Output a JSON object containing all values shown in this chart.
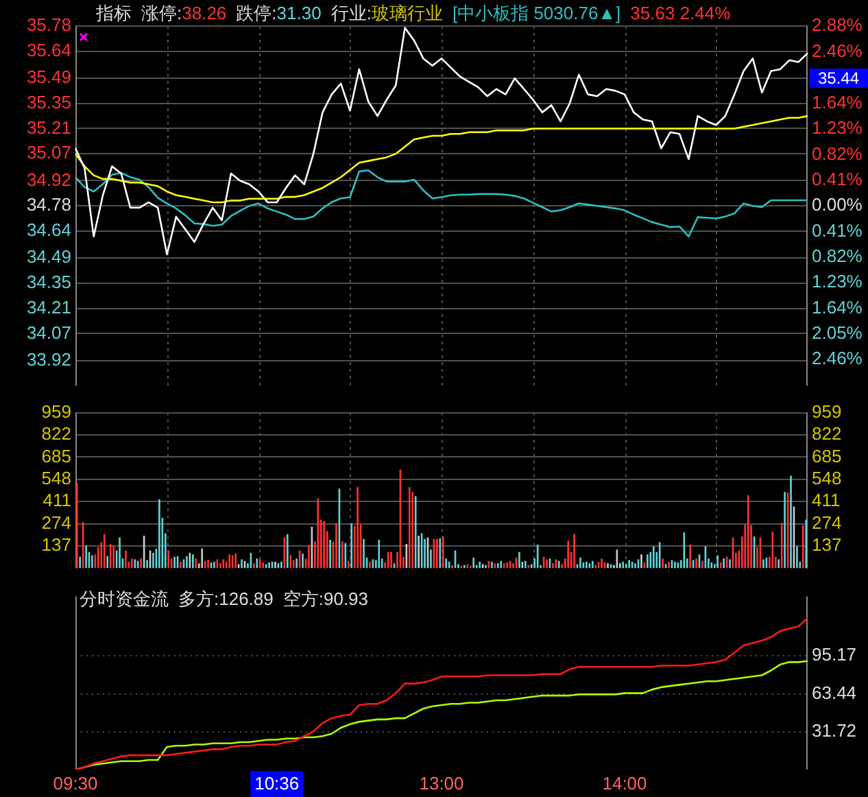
{
  "chart_data": [
    {
      "type": "line",
      "annotations": [
        "指标",
        "涨停:38.26",
        "跌停:31.30",
        "行业:玻璃行业",
        "[中小板指 5030.76▲]",
        "35.63 2.44%",
        "35.44"
      ],
      "categories": [
        null,
        null,
        null,
        null,
        null,
        null,
        null,
        null,
        null,
        null,
        null,
        null,
        null,
        null,
        null,
        null,
        null,
        null,
        null,
        null,
        null,
        null,
        null,
        null,
        null,
        null,
        null,
        null,
        null,
        null,
        null,
        null,
        null,
        null,
        null,
        null,
        null,
        null,
        null,
        null,
        null,
        null,
        null,
        null,
        null,
        null,
        null,
        null,
        null,
        null,
        null,
        null,
        null,
        null,
        null,
        null,
        null,
        null,
        null,
        null,
        null,
        null,
        null,
        null,
        null,
        null,
        null,
        null,
        null,
        null,
        null,
        null,
        null,
        null,
        null,
        null,
        null,
        null,
        null,
        null,
        null
      ],
      "ylim": [
        33.78,
        35.78
      ],
      "yticks": [
        35.78,
        35.64,
        35.49,
        35.35,
        35.21,
        35.07,
        34.92,
        34.78,
        34.64,
        34.49,
        34.35,
        34.21,
        34.07,
        33.92
      ],
      "y2lim": [
        -2.88,
        2.88
      ],
      "y2ticks": [
        {
          "value": 2.88,
          "label": "2.88%"
        },
        {
          "value": 2.46,
          "label": "2.46%"
        },
        {
          "value": 2.05,
          "label": null
        },
        {
          "value": 1.64,
          "label": "1.64%"
        },
        {
          "value": 1.23,
          "label": "1.23%"
        },
        {
          "value": 0.82,
          "label": "0.82%"
        },
        {
          "value": 0.41,
          "label": "0.41%"
        },
        {
          "value": 0,
          "label": "0.00%"
        },
        {
          "value": -0.41,
          "label": "0.41%"
        },
        {
          "value": -0.82,
          "label": "0.82%"
        },
        {
          "value": -1.23,
          "label": "1.23%"
        },
        {
          "value": -1.64,
          "label": "1.64%"
        },
        {
          "value": -2.05,
          "label": "2.05%"
        },
        {
          "value": -2.46,
          "label": "2.46%"
        }
      ],
      "grid": true,
      "tick_labels": "y",
      "series": [
        {
          "color": "#ffffff",
          "values": [
            35.1,
            34.99,
            34.61,
            34.84,
            35.0,
            34.96,
            34.77,
            34.77,
            34.8,
            34.77,
            34.51,
            34.72,
            34.65,
            34.58,
            34.68,
            34.77,
            34.7,
            34.96,
            34.92,
            34.9,
            34.86,
            34.8,
            34.8,
            34.88,
            34.95,
            34.9,
            35.07,
            35.3,
            35.4,
            35.46,
            35.31,
            35.54,
            35.36,
            35.28,
            35.37,
            35.45,
            35.77,
            35.7,
            35.6,
            35.56,
            35.6,
            35.55,
            35.5,
            35.47,
            35.44,
            35.39,
            35.43,
            35.4,
            35.49,
            35.43,
            35.37,
            35.3,
            35.34,
            35.25,
            35.35,
            35.51,
            35.4,
            35.39,
            35.43,
            35.42,
            35.4,
            35.3,
            35.26,
            35.25,
            35.1,
            35.19,
            35.18,
            35.04,
            35.28,
            35.25,
            35.23,
            35.28,
            35.4,
            35.53,
            35.6,
            35.41,
            35.53,
            35.54,
            35.59,
            35.58,
            35.63
          ]
        },
        {
          "color": "#ffff00",
          "values": [
            35.07,
            35.0,
            34.95,
            34.93,
            34.93,
            34.92,
            34.91,
            34.91,
            34.9,
            34.89,
            34.86,
            34.84,
            34.83,
            34.82,
            34.81,
            34.8,
            34.8,
            34.81,
            34.81,
            34.82,
            34.82,
            34.82,
            34.82,
            34.83,
            34.83,
            34.84,
            34.86,
            34.88,
            34.91,
            34.94,
            34.98,
            35.02,
            35.03,
            35.04,
            35.05,
            35.07,
            35.11,
            35.15,
            35.16,
            35.17,
            35.17,
            35.18,
            35.18,
            35.19,
            35.19,
            35.19,
            35.2,
            35.2,
            35.2,
            35.2,
            35.21,
            35.21,
            35.21,
            35.21,
            35.21,
            35.21,
            35.21,
            35.21,
            35.21,
            35.21,
            35.21,
            35.21,
            35.21,
            35.21,
            35.21,
            35.21,
            35.21,
            35.21,
            35.21,
            35.21,
            35.21,
            35.21,
            35.21,
            35.22,
            35.23,
            35.24,
            35.25,
            35.26,
            35.27,
            35.27,
            35.28
          ]
        },
        {
          "color": "#2fbfbf",
          "axis": "y2",
          "values": [
            0.46,
            0.3,
            0.23,
            0.35,
            0.5,
            0.53,
            0.46,
            0.42,
            0.3,
            0.13,
            0.04,
            -0.04,
            -0.15,
            -0.28,
            -0.29,
            -0.32,
            -0.3,
            -0.16,
            -0.08,
            0.0,
            0.04,
            -0.04,
            -0.09,
            -0.14,
            -0.21,
            -0.21,
            -0.17,
            -0.04,
            0.06,
            0.12,
            0.14,
            0.55,
            0.57,
            0.46,
            0.39,
            0.39,
            0.39,
            0.42,
            0.25,
            0.12,
            0.14,
            0.17,
            0.18,
            0.18,
            0.19,
            0.19,
            0.19,
            0.18,
            0.16,
            0.12,
            0.05,
            -0.02,
            -0.09,
            -0.07,
            -0.02,
            0.04,
            0.02,
            0.0,
            -0.02,
            -0.04,
            -0.07,
            -0.14,
            -0.2,
            -0.26,
            -0.3,
            -0.34,
            -0.33,
            -0.49,
            -0.18,
            -0.19,
            -0.2,
            -0.17,
            -0.12,
            0.04,
            0.0,
            -0.02,
            0.09,
            0.09,
            0.09,
            0.09,
            0.09
          ]
        }
      ]
    },
    {
      "type": "bar",
      "grid": true,
      "tick_labels": "y",
      "categories": [
        null,
        null,
        null,
        null,
        null,
        null,
        null,
        null,
        null,
        null,
        null,
        null,
        null,
        null,
        null,
        null,
        null,
        null,
        null,
        null,
        null,
        null,
        null,
        null,
        null,
        null,
        null,
        null,
        null,
        null,
        null,
        null,
        null,
        null,
        null,
        null,
        null,
        null,
        null,
        null,
        null,
        null,
        null,
        null,
        null,
        null,
        null,
        null,
        null,
        null,
        null,
        null,
        null,
        null,
        null,
        null,
        null,
        null,
        null,
        null,
        null,
        null,
        null,
        null,
        null,
        null,
        null,
        null,
        null,
        null,
        null,
        null,
        null,
        null,
        null,
        null,
        null,
        null,
        null,
        null,
        null,
        null,
        null,
        null,
        null,
        null,
        null,
        null,
        null,
        null,
        null,
        null,
        null,
        null,
        null,
        null,
        null,
        null,
        null,
        null,
        null,
        null,
        null,
        null,
        null,
        null,
        null,
        null,
        null,
        null,
        null,
        null,
        null,
        null,
        null,
        null,
        null,
        null,
        null,
        null,
        null,
        null,
        null,
        null,
        null,
        null,
        null,
        null,
        null,
        null,
        null,
        null,
        null,
        null,
        null,
        null,
        null,
        null,
        null,
        null,
        null,
        null,
        null,
        null,
        null,
        null,
        null,
        null,
        null,
        null,
        null,
        null,
        null,
        null,
        null,
        null,
        null,
        null,
        null,
        null,
        null,
        null,
        null,
        null,
        null,
        null,
        null,
        null,
        null,
        null,
        null,
        null,
        null,
        null,
        null,
        null,
        null,
        null,
        null,
        null,
        null,
        null,
        null,
        null,
        null,
        null,
        null,
        null,
        null,
        null,
        null,
        null,
        null,
        null,
        null,
        null,
        null,
        null,
        null,
        null,
        null,
        null,
        null,
        null,
        null,
        null,
        null,
        null,
        null,
        null,
        null,
        null,
        null,
        null,
        null,
        null,
        null,
        null,
        null,
        null,
        null,
        null,
        null,
        null,
        null,
        null,
        null,
        null,
        null,
        null,
        null,
        null,
        null,
        null,
        null,
        null,
        null,
        null,
        null,
        null
      ],
      "ylim": [
        0,
        959
      ],
      "yticks": [
        137,
        274,
        411,
        548,
        685,
        822,
        959
      ],
      "y2lim": [
        0,
        959
      ],
      "y2ticks": [
        137,
        274,
        411,
        548,
        685,
        822,
        959
      ],
      "values": [
        525,
        70,
        285,
        140,
        100,
        80,
        85,
        130,
        160,
        210,
        75,
        150,
        140,
        110,
        190,
        60,
        110,
        40,
        60,
        55,
        45,
        60,
        200,
        50,
        110,
        95,
        120,
        425,
        310,
        215,
        110,
        60,
        70,
        75,
        40,
        55,
        75,
        95,
        85,
        60,
        30,
        120,
        45,
        50,
        35,
        40,
        55,
        30,
        55,
        40,
        85,
        80,
        90,
        25,
        55,
        45,
        30,
        95,
        30,
        60,
        55,
        35,
        25,
        35,
        40,
        40,
        30,
        40,
        190,
        210,
        80,
        50,
        60,
        110,
        90,
        60,
        140,
        255,
        165,
        430,
        300,
        290,
        230,
        175,
        165,
        275,
        490,
        165,
        155,
        45,
        275,
        260,
        500,
        270,
        180,
        65,
        40,
        55,
        50,
        175,
        60,
        35,
        100,
        100,
        30,
        100,
        610,
        70,
        150,
        500,
        470,
        445,
        200,
        215,
        180,
        190,
        115,
        180,
        180,
        185,
        195,
        60,
        40,
        20,
        110,
        25,
        15,
        20,
        25,
        15,
        65,
        20,
        40,
        25,
        20,
        45,
        40,
        30,
        30,
        45,
        30,
        35,
        45,
        30,
        65,
        100,
        40,
        45,
        20,
        25,
        60,
        145,
        20,
        70,
        55,
        60,
        30,
        55,
        45,
        25,
        60,
        170,
        100,
        210,
        25,
        65,
        35,
        40,
        30,
        45,
        20,
        40,
        60,
        35,
        30,
        25,
        20,
        115,
        30,
        40,
        25,
        50,
        40,
        30,
        55,
        85,
        35,
        85,
        100,
        135,
        100,
        160,
        60,
        25,
        40,
        50,
        40,
        35,
        50,
        220,
        60,
        145,
        50,
        60,
        85,
        45,
        135,
        60,
        35,
        25,
        80,
        35,
        60,
        70,
        55,
        190,
        95,
        110,
        195,
        270,
        450,
        265,
        195,
        130,
        190,
        55,
        65,
        70,
        225,
        70,
        55,
        280,
        470,
        465,
        570,
        380,
        135,
        40,
        265,
        300
      ],
      "colors": [
        "#ff3232",
        "#5fd3d8",
        "#ff3232",
        "#5fd3d8",
        "#5fd3d8",
        "#5fd3d8",
        "#ff3232",
        "#ff3232",
        "#ff3232",
        "#ff3232",
        "#5fd3d8",
        "#ff3232",
        "#ff3232",
        "#5fd3d8",
        "#5fd3d8",
        "#5fd3d8",
        "#ff3232",
        "#ff3232",
        "#ff3232",
        "#5fd3d8",
        "#5fd3d8",
        "#ff3232",
        "#c8c8c8",
        "#5fd3d8",
        "#c8c8c8",
        "#5fd3d8",
        "#5fd3d8",
        "#5fd3d8",
        "#5fd3d8",
        "#5fd3d8",
        "#ff3232",
        "#ff3232",
        "#5fd3d8",
        "#5fd3d8",
        "#ff3232",
        "#5fd3d8",
        "#5fd3d8",
        "#c8c8c8",
        "#5fd3d8",
        "#ff3232",
        "#c8c8c8",
        "#c8c8c8",
        "#ff3232",
        "#ff3232",
        "#5fd3d8",
        "#5fd3d8",
        "#ff3232",
        "#ff3232",
        "#ff3232",
        "#ff3232",
        "#ff3232",
        "#ff3232",
        "#ff3232",
        "#c8c8c8",
        "#5fd3d8",
        "#c8c8c8",
        "#5fd3d8",
        "#5fd3d8",
        "#ff3232",
        "#5fd3d8",
        "#ff3232",
        "#ff3232",
        "#5fd3d8",
        "#5fd3d8",
        "#5fd3d8",
        "#c8c8c8",
        "#5fd3d8",
        "#5fd3d8",
        "#ff3232",
        "#5fd3d8",
        "#ff3232",
        "#ff3232",
        "#5fd3d8",
        "#ff3232",
        "#5fd3d8",
        "#ff3232",
        "#ff3232",
        "#c8c8c8",
        "#ff3232",
        "#ff3232",
        "#ff3232",
        "#ff3232",
        "#ff3232",
        "#5fd3d8",
        "#ff3232",
        "#ff3232",
        "#5fd3d8",
        "#ff3232",
        "#5fd3d8",
        "#ff3232",
        "#5fd3d8",
        "#ff3232",
        "#ff3232",
        "#ff3232",
        "#5fd3d8",
        "#5fd3d8",
        "#ff3232",
        "#5fd3d8",
        "#5fd3d8",
        "#5fd3d8",
        "#5fd3d8",
        "#ff3232",
        "#ff3232",
        "#ff3232",
        "#5fd3d8",
        "#ff3232",
        "#ff3232",
        "#ff3232",
        "#c8c8c8",
        "#ff3232",
        "#ff3232",
        "#5fd3d8",
        "#c8c8c8",
        "#5fd3d8",
        "#5fd3d8",
        "#c8c8c8",
        "#5fd3d8",
        "#ff3232",
        "#ff3232",
        "#5fd3d8",
        "#ff3232",
        "#5fd3d8",
        "#5fd3d8",
        "#ff3232",
        "#5fd3d8",
        "#5fd3d8",
        "#ff3232",
        "#5fd3d8",
        "#ff3232",
        "#ff3232",
        "#5fd3d8",
        "#5fd3d8",
        "#5fd3d8",
        "#c8c8c8",
        "#5fd3d8",
        "#ff3232",
        "#5fd3d8",
        "#ff3232",
        "#5fd3d8",
        "#5fd3d8",
        "#ff3232",
        "#ff3232",
        "#ff3232",
        "#ff3232",
        "#ff3232",
        "#5fd3d8",
        "#c8c8c8",
        "#5fd3d8",
        "#ff3232",
        "#5fd3d8",
        "#5fd3d8",
        "#5fd3d8",
        "#5fd3d8",
        "#ff3232",
        "#ff3232",
        "#5fd3d8",
        "#ff3232",
        "#ff3232",
        "#5fd3d8",
        "#ff3232",
        "#ff3232",
        "#ff3232",
        "#ff3232",
        "#ff3232",
        "#5fd3d8",
        "#5fd3d8",
        "#5fd3d8",
        "#5fd3d8",
        "#5fd3d8",
        "#5fd3d8",
        "#ff3232",
        "#ff3232",
        "#ff3232",
        "#ff3232",
        "#c8c8c8",
        "#5fd3d8",
        "#c8c8c8",
        "#c8c8c8",
        "#c8c8c8",
        "#5fd3d8",
        "#5fd3d8",
        "#5fd3d8",
        "#5fd3d8",
        "#5fd3d8",
        "#5fd3d8",
        "#c8c8c8",
        "#ff3232",
        "#5fd3d8",
        "#5fd3d8",
        "#5fd3d8",
        "#5fd3d8",
        "#5fd3d8",
        "#ff3232",
        "#5fd3d8",
        "#ff3232",
        "#5fd3d8",
        "#5fd3d8",
        "#5fd3d8",
        "#5fd3d8",
        "#5fd3d8",
        "#5fd3d8",
        "#ff3232",
        "#5fd3d8",
        "#ff3232",
        "#5fd3d8",
        "#ff3232",
        "#5fd3d8",
        "#5fd3d8",
        "#5fd3d8",
        "#5fd3d8",
        "#5fd3d8",
        "#ff3232",
        "#5fd3d8",
        "#ff3232",
        "#5fd3d8",
        "#ff3232",
        "#ff3232",
        "#ff3232",
        "#ff3232",
        "#ff3232",
        "#ff3232",
        "#ff3232",
        "#5fd3d8",
        "#ff3232",
        "#ff3232",
        "#5fd3d8",
        "#5fd3d8",
        "#ff3232",
        "#ff3232",
        "#ff3232",
        "#5fd3d8",
        "#ff3232",
        "#5fd3d8",
        "#ff3232",
        "#5fd3d8",
        "#c8c8c8",
        "#5fd3d8",
        "#5fd3d8",
        "#ff3232",
        "#5fd3d8"
      ]
    },
    {
      "type": "line",
      "title": "分时资金流",
      "annotations": [
        "多方:126.89",
        "空方:90.93"
      ],
      "grid": "y",
      "categories": [
        "09:30",
        null,
        null,
        null,
        null,
        null,
        null,
        null,
        null,
        null,
        null,
        null,
        null,
        null,
        null,
        null,
        null,
        null,
        null,
        null,
        null,
        null,
        "10:36",
        null,
        null,
        null,
        null,
        null,
        null,
        null,
        null,
        null,
        null,
        null,
        null,
        null,
        null,
        null,
        null,
        null,
        "13:00",
        null,
        null,
        null,
        null,
        null,
        null,
        null,
        null,
        null,
        null,
        null,
        null,
        null,
        null,
        null,
        null,
        null,
        null,
        null,
        "14:00",
        null,
        null,
        null,
        null,
        null,
        null,
        null,
        null,
        null,
        null,
        null,
        null,
        null,
        null,
        null,
        null,
        null,
        null,
        null,
        null
      ],
      "y2lim": [
        0,
        145
      ],
      "y2ticks": [
        31.72,
        63.44,
        95.17
      ],
      "series": [
        {
          "color": "#ff1a1a",
          "axis": "y2",
          "values": [
            0,
            2,
            5,
            7,
            9,
            11,
            12,
            12,
            12,
            12,
            12,
            13,
            14,
            15,
            16,
            17,
            17,
            19,
            20,
            20,
            21,
            21,
            21,
            23,
            24,
            28,
            32,
            39,
            43,
            45,
            46,
            54,
            55,
            55,
            58,
            64,
            72,
            72,
            73,
            75,
            78,
            78,
            78,
            78,
            78,
            79,
            79,
            79,
            79,
            79,
            79,
            80,
            80,
            80,
            84,
            86,
            86,
            86,
            86,
            86,
            86,
            86,
            86,
            86,
            87,
            87,
            87,
            87,
            88,
            89,
            90,
            92,
            98,
            104,
            106,
            108,
            111,
            116,
            118,
            120,
            126.89
          ]
        },
        {
          "color": "#aaff00",
          "axis": "y2",
          "values": [
            0,
            2,
            4,
            5,
            6,
            7,
            7,
            7,
            8,
            8,
            19,
            20,
            20,
            21,
            21,
            22,
            22,
            22,
            23,
            23,
            24,
            25,
            25,
            26,
            26,
            27,
            27,
            28,
            30,
            35,
            38,
            40,
            41,
            42,
            42,
            43,
            43,
            47,
            51,
            53,
            54,
            55,
            55,
            56,
            56,
            57,
            58,
            58,
            59,
            60,
            61,
            62,
            62,
            62,
            62,
            63,
            63,
            63,
            63,
            63,
            64,
            64,
            64,
            67,
            69,
            70,
            71,
            72,
            73,
            74,
            74,
            75,
            76,
            77,
            78,
            79,
            83,
            88,
            90,
            90,
            90.93
          ]
        }
      ]
    }
  ]
}
